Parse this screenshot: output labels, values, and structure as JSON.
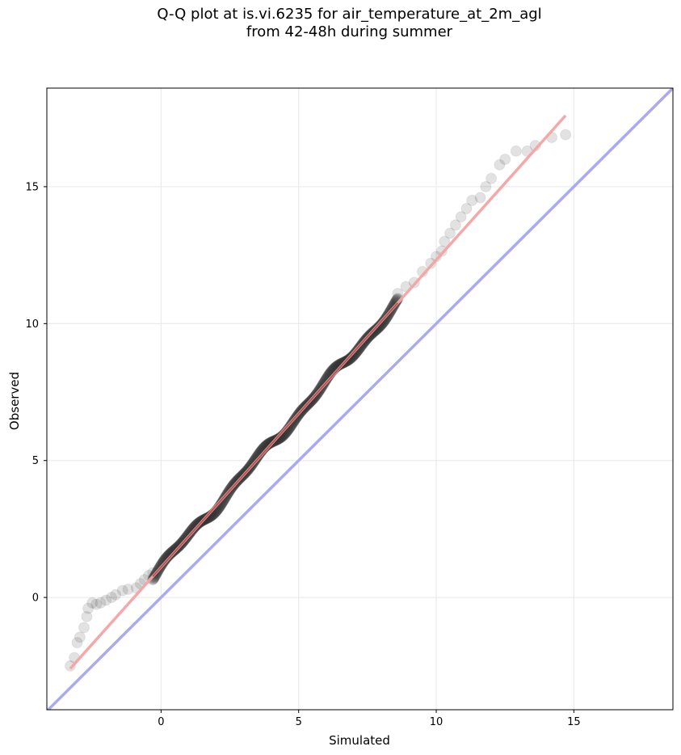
{
  "chart_data": {
    "type": "scatter",
    "title_line1": "Q-Q plot at is.vi.6235 for air_temperature_at_2m_agl",
    "title_line2": "from 42-48h during summer",
    "xlabel": "Simulated",
    "ylabel": "Observed",
    "xlim": [
      -4.15,
      18.6
    ],
    "ylim": [
      -4.1,
      18.6
    ],
    "xticks": [
      0,
      5,
      10,
      15
    ],
    "yticks": [
      0,
      5,
      10,
      15
    ],
    "grid": true,
    "reference_line": {
      "from": [
        -4.15,
        -4.15
      ],
      "to": [
        18.6,
        18.6
      ],
      "color": "#aaaaf2"
    },
    "fit_line": {
      "from": [
        -3.3,
        -2.6
      ],
      "to": [
        14.7,
        17.6
      ],
      "color": "#f4a3a3"
    },
    "points_sparse": [
      [
        -3.3,
        -2.5
      ],
      [
        -3.15,
        -2.2
      ],
      [
        -3.05,
        -1.65
      ],
      [
        -2.95,
        -1.45
      ],
      [
        -2.8,
        -1.1
      ],
      [
        -2.7,
        -0.7
      ],
      [
        -2.65,
        -0.4
      ],
      [
        -2.5,
        -0.2
      ],
      [
        -2.35,
        -0.25
      ],
      [
        -2.2,
        -0.2
      ],
      [
        -2.0,
        -0.1
      ],
      [
        -1.8,
        0.0
      ],
      [
        -1.65,
        0.1
      ],
      [
        -1.4,
        0.25
      ],
      [
        -1.2,
        0.3
      ],
      [
        -0.9,
        0.35
      ],
      [
        -0.75,
        0.5
      ],
      [
        -0.6,
        0.65
      ],
      [
        -0.45,
        0.8
      ],
      [
        -0.3,
        0.9
      ],
      [
        8.6,
        11.1
      ],
      [
        8.9,
        11.35
      ],
      [
        9.2,
        11.5
      ],
      [
        9.5,
        11.9
      ],
      [
        9.8,
        12.2
      ],
      [
        10.0,
        12.45
      ],
      [
        10.2,
        12.65
      ],
      [
        10.3,
        13.0
      ],
      [
        10.5,
        13.3
      ],
      [
        10.7,
        13.6
      ],
      [
        10.9,
        13.9
      ],
      [
        11.1,
        14.2
      ],
      [
        11.3,
        14.5
      ],
      [
        11.6,
        14.6
      ],
      [
        11.8,
        15.0
      ],
      [
        12.0,
        15.3
      ],
      [
        12.3,
        15.8
      ],
      [
        12.5,
        16.0
      ],
      [
        12.9,
        16.3
      ],
      [
        13.3,
        16.3
      ],
      [
        13.6,
        16.5
      ],
      [
        14.2,
        16.8
      ],
      [
        14.7,
        16.9
      ]
    ],
    "points_dense_range": [
      -0.3,
      8.6
    ]
  }
}
